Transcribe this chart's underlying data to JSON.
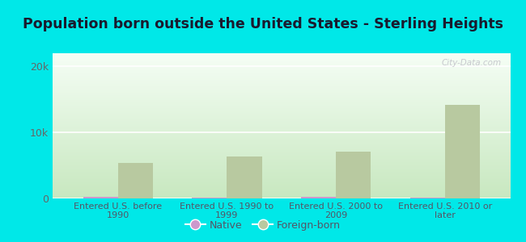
{
  "title": "Population born outside the United States - Sterling Heights",
  "categories": [
    "Entered U.S. before\n1990",
    "Entered U.S. 1990 to\n1999",
    "Entered U.S. 2000 to\n2009",
    "Entered U.S. 2010 or\nlater"
  ],
  "native_values": [
    200,
    80,
    230,
    180
  ],
  "foreign_born_values": [
    5400,
    6400,
    7100,
    14200
  ],
  "native_color": "#cc99cc",
  "foreign_born_color": "#b8c9a0",
  "plot_bg_top": "#f5fef5",
  "plot_bg_bottom": "#c8e8c0",
  "outer_background": "#00e8e8",
  "ylim": [
    0,
    22000
  ],
  "yticks": [
    0,
    10000,
    20000
  ],
  "ytick_labels": [
    "0",
    "10k",
    "20k"
  ],
  "bar_width": 0.32,
  "title_fontsize": 12.5,
  "watermark": "City-Data.com",
  "legend_native": "Native",
  "legend_foreign": "Foreign-born",
  "title_color": "#1a1a2e",
  "tick_color": "#666666",
  "label_color": "#555566"
}
